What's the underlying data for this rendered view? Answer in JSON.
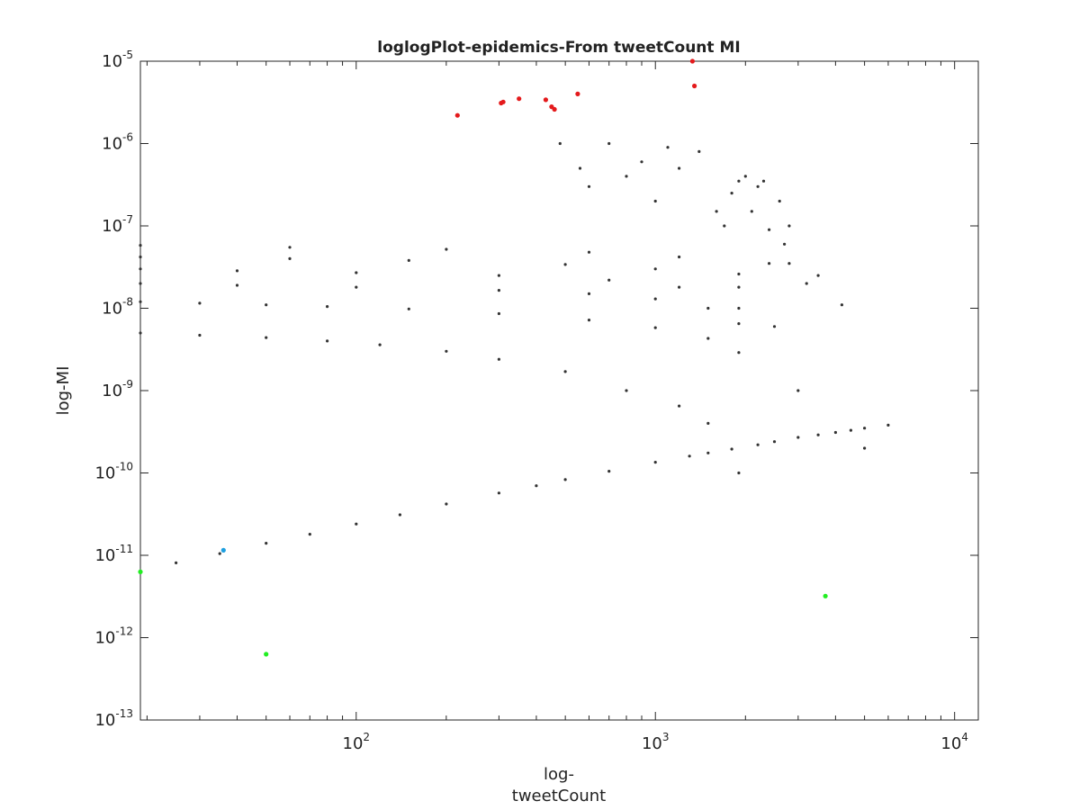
{
  "chart_data": {
    "type": "scatter",
    "title": "loglogPlot-epidemics-From tweetCount MI",
    "xlabel": [
      "log-",
      "tweetCount"
    ],
    "ylabel": "log-MI",
    "xscale": "log",
    "yscale": "log",
    "xlim": [
      19,
      12000
    ],
    "ylim": [
      1e-13,
      1e-05
    ],
    "x_ticks": [
      {
        "value": 100,
        "base": "10",
        "exp": "2"
      },
      {
        "value": 1000,
        "base": "10",
        "exp": "3"
      },
      {
        "value": 10000,
        "base": "10",
        "exp": "4"
      }
    ],
    "y_ticks": [
      {
        "value": 1e-13,
        "base": "10",
        "exp": "-13"
      },
      {
        "value": 1e-12,
        "base": "10",
        "exp": "-12"
      },
      {
        "value": 1e-11,
        "base": "10",
        "exp": "-11"
      },
      {
        "value": 1e-10,
        "base": "10",
        "exp": "-10"
      },
      {
        "value": 1e-09,
        "base": "10",
        "exp": "-9"
      },
      {
        "value": 1e-08,
        "base": "10",
        "exp": "-8"
      },
      {
        "value": 1e-07,
        "base": "10",
        "exp": "-7"
      },
      {
        "value": 1e-06,
        "base": "10",
        "exp": "-6"
      },
      {
        "value": 1e-05,
        "base": "10",
        "exp": "-5"
      }
    ],
    "grid": false,
    "colors": {
      "main": "#333333",
      "top": "#e41a1c",
      "bottom": "#22ee22",
      "highlight": "#1e9fe0"
    },
    "series": [
      {
        "role": "main",
        "color": "#333333",
        "x": [
          19,
          25,
          35,
          50,
          70,
          100,
          140,
          200,
          300,
          400,
          500,
          700,
          1000,
          1300,
          1500,
          1800,
          2200,
          2500,
          3000,
          3500,
          4000,
          4500,
          5000,
          6000,
          19,
          30,
          50,
          80,
          120,
          200,
          300,
          500,
          800,
          1200,
          1500,
          1900,
          19,
          30,
          50,
          80,
          150,
          300,
          600,
          1000,
          1500,
          1900,
          19,
          40,
          100,
          300,
          600,
          1000,
          1500,
          1900,
          19,
          40,
          100,
          300,
          700,
          1200,
          1900,
          19,
          60,
          150,
          500,
          1000,
          1900,
          19,
          60,
          200,
          600,
          1200,
          1900,
          2400,
          2200,
          2600,
          2800,
          3000,
          3200,
          3500,
          4200,
          5000,
          2500,
          2000,
          2400,
          2800,
          700,
          800,
          1000,
          1200,
          1400,
          1600,
          1800,
          2100,
          2300,
          2700,
          1700,
          1900,
          1100,
          900,
          600,
          480,
          560
        ],
        "y": [
          6.3e-12,
          8.1e-12,
          1.05e-11,
          1.4e-11,
          1.8e-11,
          2.4e-11,
          3.1e-11,
          4.2e-11,
          5.7e-11,
          7e-11,
          8.3e-11,
          1.05e-10,
          1.35e-10,
          1.6e-10,
          1.75e-10,
          1.95e-10,
          2.2e-10,
          2.4e-10,
          2.7e-10,
          2.9e-10,
          3.1e-10,
          3.3e-10,
          3.5e-10,
          3.8e-10,
          5e-09,
          4.7e-09,
          4.4e-09,
          4e-09,
          3.6e-09,
          3e-09,
          2.4e-09,
          1.7e-09,
          1e-09,
          6.5e-10,
          4e-10,
          1e-10,
          1.2e-08,
          1.15e-08,
          1.1e-08,
          1.05e-08,
          9.8e-09,
          8.6e-09,
          7.2e-09,
          5.8e-09,
          4.3e-09,
          2.9e-09,
          2e-08,
          1.9e-08,
          1.8e-08,
          1.65e-08,
          1.5e-08,
          1.3e-08,
          1e-08,
          6.5e-09,
          3e-08,
          2.85e-08,
          2.7e-08,
          2.5e-08,
          2.2e-08,
          1.8e-08,
          1e-08,
          4.2e-08,
          4e-08,
          3.8e-08,
          3.4e-08,
          3e-08,
          1.8e-08,
          5.8e-08,
          5.5e-08,
          5.2e-08,
          4.8e-08,
          4.2e-08,
          2.6e-08,
          9e-08,
          3e-07,
          2e-07,
          3.5e-08,
          1e-09,
          2e-08,
          2.5e-08,
          1.1e-08,
          2e-10,
          6e-09,
          4e-07,
          3.5e-08,
          1e-07,
          1e-06,
          4e-07,
          2e-07,
          5e-07,
          8e-07,
          1.5e-07,
          2.5e-07,
          1.5e-07,
          3.5e-07,
          6e-08,
          1e-07,
          3.5e-07,
          9e-07,
          6e-07,
          3e-07,
          1e-06,
          5e-07
        ]
      },
      {
        "role": "top",
        "color": "#e41a1c",
        "x": [
          218,
          305,
          310,
          350,
          430,
          450,
          460,
          550,
          1330,
          1350
        ],
        "y": [
          2.2e-06,
          3.1e-06,
          3.2e-06,
          3.5e-06,
          3.4e-06,
          2.8e-06,
          2.6e-06,
          4e-06,
          1e-05,
          5e-06
        ]
      },
      {
        "role": "bottom",
        "color": "#22ee22",
        "x": [
          19,
          50,
          3700
        ],
        "y": [
          6.3e-12,
          6.3e-13,
          3.2e-12
        ]
      },
      {
        "role": "highlight",
        "color": "#1e9fe0",
        "x": [
          36
        ],
        "y": [
          1.15e-11
        ]
      }
    ]
  }
}
